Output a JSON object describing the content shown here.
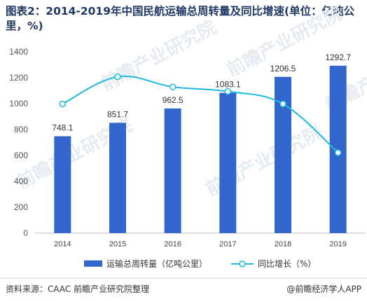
{
  "title": "图表2：2014-2019年中国民航运输总周转量及同比增速(单位：亿吨公里，%)",
  "source": "资料来源：CAAC 前瞻产业研究院整理",
  "brand": "@前瞻经济学人APP",
  "watermark": "前瞻产业研究院",
  "chart_data": {
    "type": "bar",
    "categories": [
      "2014",
      "2015",
      "2016",
      "2017",
      "2018",
      "2019"
    ],
    "series": [
      {
        "name": "运输总周转量（亿吨公里）",
        "type": "bar",
        "values": [
          748.1,
          851.7,
          962.5,
          1083.1,
          1206.5,
          1292.7
        ],
        "labels": [
          "748.1",
          "851.7",
          "962.5",
          "1083.1",
          "1206.5",
          "1292.7"
        ],
        "color": "#3366cc"
      },
      {
        "name": "同比增长（%）",
        "type": "line",
        "values": [
          11.4,
          13.8,
          12.9,
          12.5,
          11.4,
          7.1
        ],
        "color": "#1fb8e0"
      }
    ],
    "yticks": [
      "0",
      "200",
      "400",
      "600",
      "800",
      "1000",
      "1200",
      "1400"
    ],
    "ylim": [
      0,
      1400
    ],
    "y2lim": [
      0,
      16
    ],
    "grid": false,
    "legend": "bottom"
  }
}
